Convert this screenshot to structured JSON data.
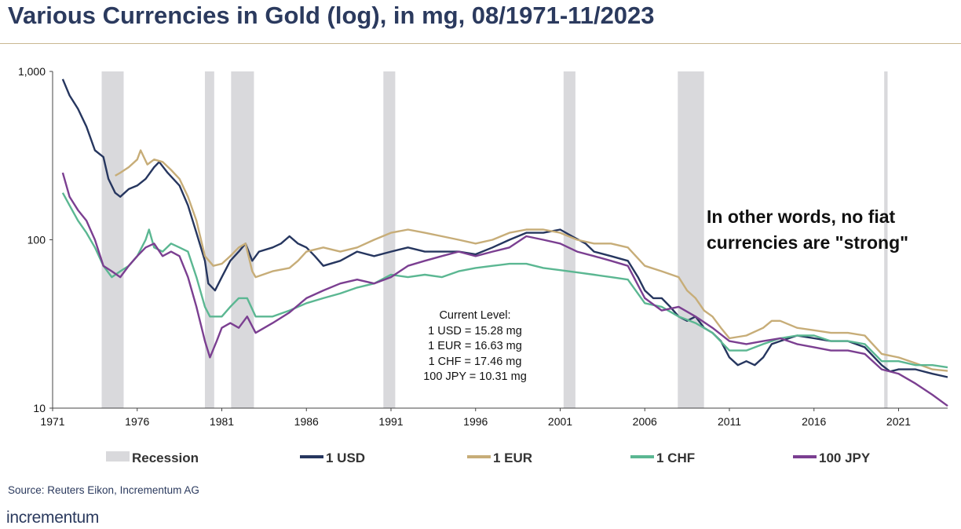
{
  "title": "Various Currencies in Gold (log), in mg, 08/1971-11/2023",
  "source": "Source: Reuters Eikon, Incrementum AG",
  "brand": "incrementum",
  "callout": [
    "In other words, no fiat",
    "currencies are \"strong\""
  ],
  "current_level": {
    "heading": "Current Level:",
    "lines": [
      "1 USD = 15.28 mg",
      "1 EUR = 16.63 mg",
      "1 CHF = 17.46 mg",
      "100 JPY = 10.31 mg"
    ]
  },
  "chart_data": {
    "type": "line",
    "y_scale": "log",
    "ylim": [
      10,
      1000
    ],
    "xlim": [
      1971,
      2023.9
    ],
    "y_ticks": [
      {
        "value": 10,
        "label": "10"
      },
      {
        "value": 100,
        "label": "100"
      },
      {
        "value": 1000,
        "label": "1,000"
      }
    ],
    "x_ticks": [
      1971,
      1976,
      1981,
      1986,
      1991,
      1996,
      2001,
      2006,
      2011,
      2016,
      2021
    ],
    "grid": false,
    "legend_position": "bottom",
    "recession_label": "Recession",
    "recessions": [
      [
        1973.9,
        1975.2
      ],
      [
        1980.0,
        1980.55
      ],
      [
        1981.55,
        1982.9
      ],
      [
        1990.55,
        1991.25
      ],
      [
        2001.2,
        2001.9
      ],
      [
        2007.95,
        2009.5
      ],
      [
        2020.15,
        2020.35
      ]
    ],
    "series": [
      {
        "name": "1 USD",
        "color": "#26365f",
        "points": [
          [
            1971.6,
            900
          ],
          [
            1972.0,
            720
          ],
          [
            1972.5,
            600
          ],
          [
            1973.0,
            470
          ],
          [
            1973.5,
            340
          ],
          [
            1974.0,
            310
          ],
          [
            1974.3,
            230
          ],
          [
            1974.7,
            190
          ],
          [
            1975.0,
            180
          ],
          [
            1975.5,
            200
          ],
          [
            1976.0,
            210
          ],
          [
            1976.5,
            230
          ],
          [
            1977.0,
            270
          ],
          [
            1977.3,
            290
          ],
          [
            1977.8,
            250
          ],
          [
            1978.5,
            210
          ],
          [
            1979.0,
            160
          ],
          [
            1979.5,
            110
          ],
          [
            1980.0,
            75
          ],
          [
            1980.2,
            55
          ],
          [
            1980.6,
            50
          ],
          [
            1981.0,
            60
          ],
          [
            1981.5,
            75
          ],
          [
            1982.0,
            85
          ],
          [
            1982.4,
            95
          ],
          [
            1982.8,
            75
          ],
          [
            1983.2,
            85
          ],
          [
            1984.0,
            90
          ],
          [
            1984.5,
            95
          ],
          [
            1985.0,
            105
          ],
          [
            1985.5,
            95
          ],
          [
            1986.0,
            90
          ],
          [
            1986.5,
            80
          ],
          [
            1987.0,
            70
          ],
          [
            1988.0,
            75
          ],
          [
            1989.0,
            85
          ],
          [
            1990.0,
            80
          ],
          [
            1991.0,
            85
          ],
          [
            1992.0,
            90
          ],
          [
            1993.0,
            85
          ],
          [
            1994.0,
            85
          ],
          [
            1995.0,
            85
          ],
          [
            1996.0,
            82
          ],
          [
            1997.0,
            90
          ],
          [
            1998.0,
            100
          ],
          [
            1999.0,
            110
          ],
          [
            2000.0,
            110
          ],
          [
            2001.0,
            115
          ],
          [
            2001.7,
            105
          ],
          [
            2002.5,
            95
          ],
          [
            2003.0,
            85
          ],
          [
            2004.0,
            80
          ],
          [
            2005.0,
            75
          ],
          [
            2005.6,
            60
          ],
          [
            2006.0,
            50
          ],
          [
            2006.5,
            45
          ],
          [
            2007.0,
            45
          ],
          [
            2007.5,
            40
          ],
          [
            2008.0,
            35
          ],
          [
            2008.5,
            33
          ],
          [
            2009.0,
            35
          ],
          [
            2009.5,
            30
          ],
          [
            2010.0,
            28
          ],
          [
            2010.5,
            25
          ],
          [
            2011.0,
            20
          ],
          [
            2011.5,
            18
          ],
          [
            2012.0,
            19
          ],
          [
            2012.5,
            18
          ],
          [
            2013.0,
            20
          ],
          [
            2013.5,
            24
          ],
          [
            2014.0,
            25
          ],
          [
            2015.0,
            27
          ],
          [
            2016.0,
            26
          ],
          [
            2017.0,
            25
          ],
          [
            2018.0,
            25
          ],
          [
            2019.0,
            23
          ],
          [
            2020.0,
            18
          ],
          [
            2020.5,
            16.5
          ],
          [
            2021.0,
            17
          ],
          [
            2022.0,
            17
          ],
          [
            2023.0,
            16
          ],
          [
            2023.9,
            15.28
          ]
        ]
      },
      {
        "name": "1 EUR",
        "color": "#c7ad78",
        "points": [
          [
            1974.7,
            240
          ],
          [
            1975.0,
            250
          ],
          [
            1975.5,
            270
          ],
          [
            1976.0,
            300
          ],
          [
            1976.2,
            340
          ],
          [
            1976.6,
            280
          ],
          [
            1977.0,
            300
          ],
          [
            1977.5,
            290
          ],
          [
            1978.0,
            260
          ],
          [
            1978.5,
            230
          ],
          [
            1979.0,
            180
          ],
          [
            1979.5,
            130
          ],
          [
            1980.0,
            80
          ],
          [
            1980.5,
            70
          ],
          [
            1981.0,
            72
          ],
          [
            1981.5,
            80
          ],
          [
            1982.0,
            90
          ],
          [
            1982.4,
            95
          ],
          [
            1982.8,
            65
          ],
          [
            1983.0,
            60
          ],
          [
            1984.0,
            65
          ],
          [
            1985.0,
            68
          ],
          [
            1985.5,
            75
          ],
          [
            1986.0,
            85
          ],
          [
            1987.0,
            90
          ],
          [
            1988.0,
            85
          ],
          [
            1989.0,
            90
          ],
          [
            1990.0,
            100
          ],
          [
            1991.0,
            110
          ],
          [
            1992.0,
            115
          ],
          [
            1993.0,
            110
          ],
          [
            1994.0,
            105
          ],
          [
            1995.0,
            100
          ],
          [
            1996.0,
            95
          ],
          [
            1997.0,
            100
          ],
          [
            1998.0,
            110
          ],
          [
            1999.0,
            115
          ],
          [
            2000.0,
            115
          ],
          [
            2001.0,
            110
          ],
          [
            2002.0,
            100
          ],
          [
            2003.0,
            95
          ],
          [
            2004.0,
            95
          ],
          [
            2005.0,
            90
          ],
          [
            2006.0,
            70
          ],
          [
            2007.0,
            65
          ],
          [
            2008.0,
            60
          ],
          [
            2008.5,
            50
          ],
          [
            2009.0,
            45
          ],
          [
            2009.5,
            38
          ],
          [
            2010.0,
            35
          ],
          [
            2010.5,
            30
          ],
          [
            2011.0,
            26
          ],
          [
            2012.0,
            27
          ],
          [
            2013.0,
            30
          ],
          [
            2013.5,
            33
          ],
          [
            2014.0,
            33
          ],
          [
            2015.0,
            30
          ],
          [
            2016.0,
            29
          ],
          [
            2017.0,
            28
          ],
          [
            2018.0,
            28
          ],
          [
            2019.0,
            27
          ],
          [
            2020.0,
            21
          ],
          [
            2021.0,
            20
          ],
          [
            2022.0,
            18.5
          ],
          [
            2023.0,
            17
          ],
          [
            2023.9,
            16.63
          ]
        ]
      },
      {
        "name": "1 CHF",
        "color": "#5bb792",
        "points": [
          [
            1971.6,
            190
          ],
          [
            1972.0,
            160
          ],
          [
            1972.5,
            130
          ],
          [
            1973.0,
            110
          ],
          [
            1973.5,
            90
          ],
          [
            1974.0,
            70
          ],
          [
            1974.5,
            60
          ],
          [
            1975.0,
            65
          ],
          [
            1975.5,
            70
          ],
          [
            1976.0,
            80
          ],
          [
            1976.5,
            100
          ],
          [
            1976.7,
            115
          ],
          [
            1977.0,
            90
          ],
          [
            1977.5,
            85
          ],
          [
            1978.0,
            95
          ],
          [
            1978.5,
            90
          ],
          [
            1979.0,
            85
          ],
          [
            1979.5,
            60
          ],
          [
            1980.0,
            40
          ],
          [
            1980.3,
            35
          ],
          [
            1981.0,
            35
          ],
          [
            1981.5,
            40
          ],
          [
            1982.0,
            45
          ],
          [
            1982.5,
            45
          ],
          [
            1983.0,
            35
          ],
          [
            1984.0,
            35
          ],
          [
            1985.0,
            38
          ],
          [
            1986.0,
            42
          ],
          [
            1987.0,
            45
          ],
          [
            1988.0,
            48
          ],
          [
            1989.0,
            52
          ],
          [
            1990.0,
            55
          ],
          [
            1991.0,
            62
          ],
          [
            1992.0,
            60
          ],
          [
            1993.0,
            62
          ],
          [
            1994.0,
            60
          ],
          [
            1995.0,
            65
          ],
          [
            1996.0,
            68
          ],
          [
            1997.0,
            70
          ],
          [
            1998.0,
            72
          ],
          [
            1999.0,
            72
          ],
          [
            2000.0,
            68
          ],
          [
            2001.0,
            66
          ],
          [
            2002.0,
            64
          ],
          [
            2003.0,
            62
          ],
          [
            2004.0,
            60
          ],
          [
            2005.0,
            58
          ],
          [
            2006.0,
            42
          ],
          [
            2007.0,
            40
          ],
          [
            2008.0,
            35
          ],
          [
            2009.0,
            32
          ],
          [
            2010.0,
            28
          ],
          [
            2011.0,
            22
          ],
          [
            2012.0,
            22
          ],
          [
            2013.0,
            24
          ],
          [
            2014.0,
            26
          ],
          [
            2015.0,
            27
          ],
          [
            2016.0,
            27
          ],
          [
            2017.0,
            25
          ],
          [
            2018.0,
            25
          ],
          [
            2019.0,
            24
          ],
          [
            2020.0,
            19
          ],
          [
            2021.0,
            19
          ],
          [
            2022.0,
            18
          ],
          [
            2023.0,
            18
          ],
          [
            2023.9,
            17.46
          ]
        ]
      },
      {
        "name": "100 JPY",
        "color": "#7b3f91",
        "points": [
          [
            1971.6,
            250
          ],
          [
            1972.0,
            180
          ],
          [
            1972.5,
            150
          ],
          [
            1973.0,
            130
          ],
          [
            1973.5,
            100
          ],
          [
            1974.0,
            70
          ],
          [
            1974.5,
            65
          ],
          [
            1975.0,
            60
          ],
          [
            1975.5,
            70
          ],
          [
            1976.0,
            80
          ],
          [
            1976.5,
            90
          ],
          [
            1977.0,
            95
          ],
          [
            1977.5,
            80
          ],
          [
            1978.0,
            85
          ],
          [
            1978.5,
            80
          ],
          [
            1979.0,
            60
          ],
          [
            1979.5,
            40
          ],
          [
            1980.0,
            25
          ],
          [
            1980.3,
            20
          ],
          [
            1980.7,
            25
          ],
          [
            1981.0,
            30
          ],
          [
            1981.5,
            32
          ],
          [
            1982.0,
            30
          ],
          [
            1982.5,
            35
          ],
          [
            1983.0,
            28
          ],
          [
            1984.0,
            32
          ],
          [
            1985.0,
            37
          ],
          [
            1986.0,
            45
          ],
          [
            1987.0,
            50
          ],
          [
            1988.0,
            55
          ],
          [
            1989.0,
            58
          ],
          [
            1990.0,
            55
          ],
          [
            1991.0,
            60
          ],
          [
            1992.0,
            70
          ],
          [
            1993.0,
            75
          ],
          [
            1994.0,
            80
          ],
          [
            1995.0,
            85
          ],
          [
            1996.0,
            80
          ],
          [
            1997.0,
            85
          ],
          [
            1998.0,
            90
          ],
          [
            1999.0,
            105
          ],
          [
            2000.0,
            100
          ],
          [
            2001.0,
            95
          ],
          [
            2002.0,
            85
          ],
          [
            2003.0,
            80
          ],
          [
            2004.0,
            75
          ],
          [
            2005.0,
            70
          ],
          [
            2006.0,
            45
          ],
          [
            2007.0,
            38
          ],
          [
            2008.0,
            40
          ],
          [
            2009.0,
            35
          ],
          [
            2010.0,
            30
          ],
          [
            2011.0,
            25
          ],
          [
            2012.0,
            24
          ],
          [
            2013.0,
            25
          ],
          [
            2014.0,
            26
          ],
          [
            2015.0,
            24
          ],
          [
            2016.0,
            23
          ],
          [
            2017.0,
            22
          ],
          [
            2018.0,
            22
          ],
          [
            2019.0,
            21
          ],
          [
            2020.0,
            17
          ],
          [
            2021.0,
            16
          ],
          [
            2022.0,
            14
          ],
          [
            2023.0,
            12
          ],
          [
            2023.9,
            10.31
          ]
        ]
      }
    ]
  }
}
